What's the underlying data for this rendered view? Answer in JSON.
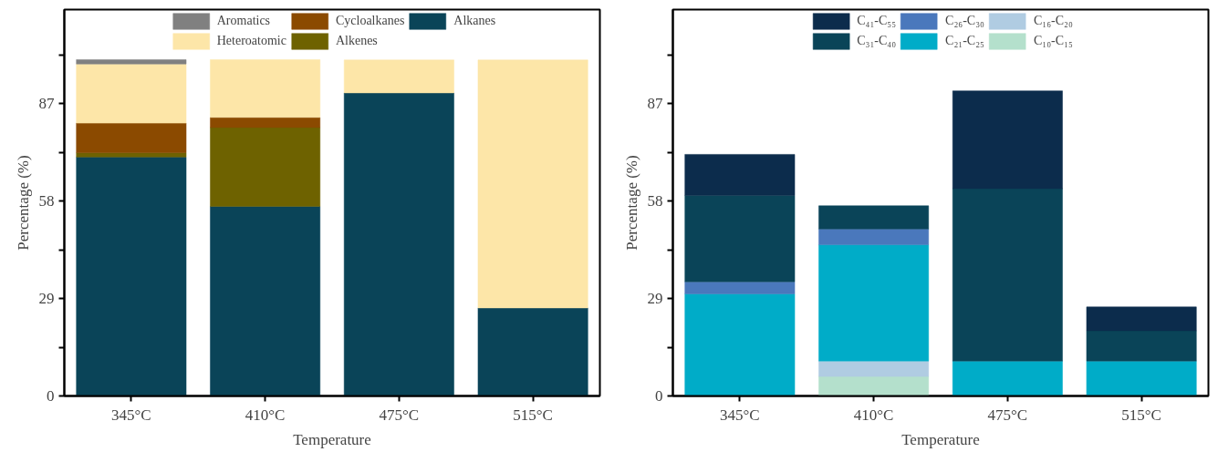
{
  "chart_data": [
    {
      "type": "bar",
      "stacked": true,
      "xlabel": "Temperature",
      "ylabel": "Percentage (%)",
      "categories": [
        "345°C",
        "410°C",
        "475°C",
        "515°C"
      ],
      "ylim": [
        0,
        115
      ],
      "yticks": [
        0,
        {
          "value": 14.5,
          "label": null
        },
        29,
        {
          "value": 43.5,
          "label": null
        },
        58,
        {
          "value": 72.5,
          "label": null
        },
        87,
        {
          "value": 101.5,
          "label": null
        }
      ],
      "grid": false,
      "legend": "top",
      "series": [
        {
          "name": "Alkanes",
          "color": "#0a4458",
          "values": [
            71.1,
            56.4,
            90.2,
            26.2
          ]
        },
        {
          "name": "Alkenes",
          "color": "#6e6200",
          "values": [
            1.3,
            23.5,
            null,
            null
          ]
        },
        {
          "name": "Cycloalkanes",
          "color": "#8b4a00",
          "values": [
            8.8,
            3.0,
            null,
            null
          ]
        },
        {
          "name": "Heteroatomic",
          "color": "#fde6a8",
          "values": [
            17.6,
            17.2,
            9.8,
            73.8
          ]
        },
        {
          "name": "Aromatics",
          "color": "#808080",
          "values": [
            1.3,
            null,
            null,
            null
          ]
        }
      ]
    },
    {
      "type": "bar",
      "stacked": true,
      "xlabel": "Temperature",
      "ylabel": "Percentage (%)",
      "categories": [
        "345°C",
        "410°C",
        "475°C",
        "515°C"
      ],
      "ylim": [
        0,
        115
      ],
      "yticks": [
        0,
        {
          "value": 14.5,
          "label": null
        },
        29,
        {
          "value": 43.5,
          "label": null
        },
        58,
        {
          "value": 72.5,
          "label": null
        },
        87,
        {
          "value": 101.5,
          "label": null
        }
      ],
      "grid": false,
      "legend": "top",
      "series": [
        {
          "name": "C₁₀-C₁₅",
          "color": "#b4e0cc",
          "values": [
            null,
            5.8,
            null,
            null
          ]
        },
        {
          "name": "C₁₆-C₂₀",
          "color": "#b0cce2",
          "values": [
            null,
            4.6,
            null,
            null
          ]
        },
        {
          "name": "C₂₁-C₂₅",
          "color": "#00acc8",
          "values": [
            30.4,
            34.6,
            10.4,
            10.4
          ]
        },
        {
          "name": "C₂₆-C₃₀",
          "color": "#4a78bc",
          "values": [
            3.6,
            4.7,
            null,
            null
          ]
        },
        {
          "name": "C₃₁-C₄₀",
          "color": "#0a4458",
          "values": [
            25.7,
            6.9,
            51.3,
            9.0
          ]
        },
        {
          "name": "C₄₁-C₅₅",
          "color": "#0c2c4c",
          "values": [
            12.2,
            null,
            29.1,
            7.1
          ]
        }
      ]
    }
  ]
}
